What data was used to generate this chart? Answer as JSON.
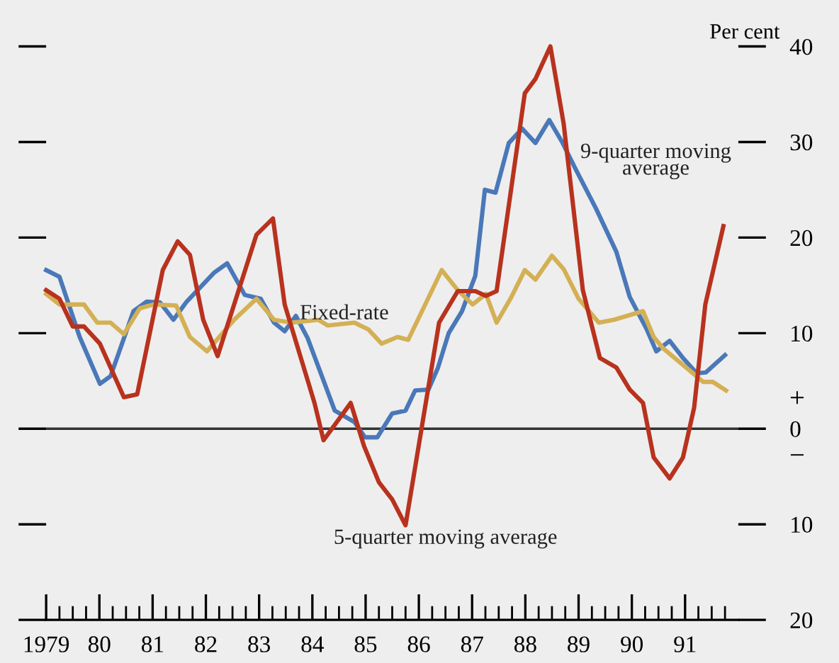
{
  "chart_data": {
    "type": "line",
    "ylabel": "Per cent",
    "xlim": [
      1979,
      1992
    ],
    "ylim": [
      -20,
      40
    ],
    "xticks": [
      {
        "value": 1979,
        "label": "1979"
      },
      {
        "value": 1979.25,
        "label": null
      },
      {
        "value": 1979.5,
        "label": null
      },
      {
        "value": 1979.75,
        "label": null
      },
      {
        "value": 1980,
        "label": "80"
      },
      {
        "value": 1980.25,
        "label": null
      },
      {
        "value": 1980.5,
        "label": null
      },
      {
        "value": 1980.75,
        "label": null
      },
      {
        "value": 1981,
        "label": "81"
      },
      {
        "value": 1981.25,
        "label": null
      },
      {
        "value": 1981.5,
        "label": null
      },
      {
        "value": 1981.75,
        "label": null
      },
      {
        "value": 1982,
        "label": "82"
      },
      {
        "value": 1982.25,
        "label": null
      },
      {
        "value": 1982.5,
        "label": null
      },
      {
        "value": 1982.75,
        "label": null
      },
      {
        "value": 1983,
        "label": "83"
      },
      {
        "value": 1983.25,
        "label": null
      },
      {
        "value": 1983.5,
        "label": null
      },
      {
        "value": 1983.75,
        "label": null
      },
      {
        "value": 1984,
        "label": "84"
      },
      {
        "value": 1984.25,
        "label": null
      },
      {
        "value": 1984.5,
        "label": null
      },
      {
        "value": 1984.75,
        "label": null
      },
      {
        "value": 1985,
        "label": "85"
      },
      {
        "value": 1985.25,
        "label": null
      },
      {
        "value": 1985.5,
        "label": null
      },
      {
        "value": 1985.75,
        "label": null
      },
      {
        "value": 1986,
        "label": "86"
      },
      {
        "value": 1986.25,
        "label": null
      },
      {
        "value": 1986.5,
        "label": null
      },
      {
        "value": 1986.75,
        "label": null
      },
      {
        "value": 1987,
        "label": "87"
      },
      {
        "value": 1987.25,
        "label": null
      },
      {
        "value": 1987.5,
        "label": null
      },
      {
        "value": 1987.75,
        "label": null
      },
      {
        "value": 1988,
        "label": "88"
      },
      {
        "value": 1988.25,
        "label": null
      },
      {
        "value": 1988.5,
        "label": null
      },
      {
        "value": 1988.75,
        "label": null
      },
      {
        "value": 1989,
        "label": "89"
      },
      {
        "value": 1989.25,
        "label": null
      },
      {
        "value": 1989.5,
        "label": null
      },
      {
        "value": 1989.75,
        "label": null
      },
      {
        "value": 1990,
        "label": "90"
      },
      {
        "value": 1990.25,
        "label": null
      },
      {
        "value": 1990.5,
        "label": null
      },
      {
        "value": 1990.75,
        "label": null
      },
      {
        "value": 1991,
        "label": "91"
      },
      {
        "value": 1991.25,
        "label": null
      },
      {
        "value": 1991.5,
        "label": null
      },
      {
        "value": 1991.75,
        "label": null
      }
    ],
    "yticks": [
      {
        "value": -20,
        "label": "20"
      },
      {
        "value": -10,
        "label": "10"
      },
      0,
      10,
      20,
      30,
      40
    ],
    "ref_lines": [
      {
        "axis": "y",
        "value": 0,
        "label": null,
        "color": "#333333"
      }
    ],
    "annotations": [
      "+",
      "−"
    ],
    "grid": false,
    "legend": false,
    "marker": "none",
    "line_style": "solid",
    "series": [
      {
        "name": "9-quarter moving average",
        "color": "#4a78b8",
        "x": [
          1979.0,
          1979.25,
          1979.63,
          1980.01,
          1980.21,
          1980.64,
          1980.89,
          1981.14,
          1981.39,
          1981.64,
          1982.15,
          1982.4,
          1982.73,
          1983.03,
          1983.28,
          1983.48,
          1983.69,
          1983.91,
          1984.42,
          1984.79,
          1984.99,
          1985.22,
          1985.5,
          1985.75,
          1985.93,
          1986.18,
          1986.36,
          1986.56,
          1986.81,
          1987.06,
          1987.24,
          1987.44,
          1987.69,
          1987.94,
          1988.19,
          1988.45,
          1988.7,
          1988.95,
          1989.33,
          1989.71,
          1989.96,
          1990.28,
          1990.46,
          1990.71,
          1990.96,
          1991.22,
          1991.39,
          1991.75
        ],
        "values": [
          16.6,
          15.9,
          9.6,
          4.7,
          5.5,
          12.3,
          13.3,
          13.2,
          11.4,
          13.3,
          16.3,
          17.3,
          14.0,
          13.6,
          11.1,
          10.2,
          11.8,
          9.5,
          1.9,
          0.7,
          -0.9,
          -0.9,
          1.6,
          1.9,
          4.0,
          4.1,
          6.4,
          10.0,
          12.3,
          16.0,
          25.0,
          24.7,
          29.9,
          31.4,
          29.9,
          32.3,
          29.9,
          27.1,
          23.0,
          18.5,
          13.8,
          10.4,
          8.1,
          9.2,
          7.4,
          5.8,
          5.9,
          7.7
        ]
      },
      {
        "name": "5-quarter moving average",
        "color": "#b8321e",
        "x": [
          1979.0,
          1979.25,
          1979.5,
          1979.71,
          1980.01,
          1980.46,
          1980.71,
          1981.19,
          1981.47,
          1981.7,
          1981.95,
          1982.22,
          1982.95,
          1983.26,
          1983.48,
          1984.04,
          1984.21,
          1984.72,
          1984.97,
          1985.25,
          1985.5,
          1985.75,
          1986.38,
          1986.73,
          1987.06,
          1987.26,
          1987.46,
          1987.99,
          1988.19,
          1988.47,
          1988.72,
          1989.08,
          1989.4,
          1989.71,
          1989.96,
          1990.21,
          1990.41,
          1990.71,
          1990.96,
          1991.17,
          1991.38,
          1991.72
        ],
        "values": [
          14.5,
          13.6,
          10.7,
          10.7,
          8.9,
          3.3,
          3.6,
          16.6,
          19.6,
          18.2,
          11.4,
          7.6,
          20.3,
          22.0,
          13.0,
          2.7,
          -1.2,
          2.7,
          -1.8,
          -5.6,
          -7.4,
          -10.1,
          11.1,
          14.4,
          14.4,
          13.9,
          14.4,
          35.1,
          36.6,
          40.0,
          31.9,
          14.5,
          7.4,
          6.4,
          4.1,
          2.7,
          -3.0,
          -5.2,
          -3.0,
          2.2,
          13.0,
          21.2
        ]
      },
      {
        "name": "Fixed-rate",
        "color": "#d4b055",
        "x": [
          1979.0,
          1979.25,
          1979.71,
          1979.96,
          1980.21,
          1980.46,
          1980.76,
          1981.02,
          1981.44,
          1981.7,
          1982.02,
          1982.53,
          1982.95,
          1983.28,
          1983.61,
          1984.11,
          1984.29,
          1984.79,
          1985.05,
          1985.3,
          1985.6,
          1985.8,
          1986.43,
          1986.73,
          1987.01,
          1987.26,
          1987.46,
          1987.72,
          1987.99,
          1988.19,
          1988.5,
          1988.72,
          1989.0,
          1989.38,
          1989.66,
          1990.21,
          1990.41,
          1990.59,
          1991.02,
          1991.34,
          1991.52,
          1991.77
        ],
        "values": [
          14.1,
          13.0,
          13.0,
          11.1,
          11.1,
          9.9,
          12.6,
          13.0,
          12.9,
          9.6,
          8.1,
          11.4,
          13.6,
          11.4,
          11.1,
          11.4,
          10.8,
          11.1,
          10.4,
          8.9,
          9.6,
          9.3,
          16.6,
          14.5,
          13.0,
          14.1,
          11.1,
          13.6,
          16.6,
          15.6,
          18.1,
          16.7,
          13.6,
          11.1,
          11.4,
          12.3,
          9.6,
          8.4,
          6.4,
          4.9,
          4.9,
          4.0
        ]
      }
    ]
  }
}
